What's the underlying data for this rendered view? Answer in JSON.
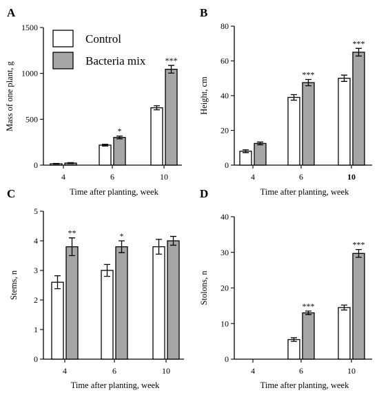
{
  "colors": {
    "control": "#ffffff",
    "bacteria": "#a6a6a8",
    "stroke": "#000000"
  },
  "legend": [
    {
      "key": "control",
      "label": "Control"
    },
    {
      "key": "bacteria",
      "label": "Bacteria mix"
    }
  ],
  "chart_data": [
    {
      "type": "bar",
      "panel": "A",
      "categories": [
        "4",
        "6",
        "10"
      ],
      "bold_categories": [],
      "xlabel": "Time after planting, week",
      "ylabel": "Mass of one plant, g",
      "ylim": [
        0,
        1500
      ],
      "yticks": [
        0,
        500,
        1000,
        1500
      ],
      "series": [
        {
          "key": "control",
          "name": "Control",
          "values": [
            15,
            218,
            625
          ],
          "errors": [
            4,
            10,
            22
          ]
        },
        {
          "key": "bacteria",
          "name": "Bacteria mix",
          "values": [
            22,
            302,
            1045
          ],
          "errors": [
            5,
            15,
            42
          ],
          "significance": [
            "",
            "*",
            "***"
          ]
        }
      ]
    },
    {
      "type": "bar",
      "panel": "B",
      "categories": [
        "4",
        "6",
        "10"
      ],
      "bold_categories": [
        "10"
      ],
      "xlabel": "Time after planting, week",
      "ylabel": "Height, cm",
      "ylim": [
        0,
        80
      ],
      "yticks": [
        0,
        20,
        40,
        60,
        80
      ],
      "series": [
        {
          "key": "control",
          "name": "Control",
          "values": [
            8,
            39,
            50
          ],
          "errors": [
            0.8,
            1.6,
            1.8
          ]
        },
        {
          "key": "bacteria",
          "name": "Bacteria mix",
          "values": [
            12.5,
            47.5,
            65
          ],
          "errors": [
            0.8,
            1.8,
            2.2
          ],
          "significance": [
            "",
            "***",
            "***"
          ]
        }
      ]
    },
    {
      "type": "bar",
      "panel": "C",
      "categories": [
        "4",
        "6",
        "10"
      ],
      "bold_categories": [],
      "xlabel": "Time after planting, week",
      "ylabel": "Stems, n",
      "ylim": [
        0,
        5
      ],
      "yticks": [
        0,
        1,
        2,
        3,
        4,
        5
      ],
      "series": [
        {
          "key": "control",
          "name": "Control",
          "values": [
            2.6,
            3.0,
            3.8
          ],
          "errors": [
            0.22,
            0.2,
            0.25
          ]
        },
        {
          "key": "bacteria",
          "name": "Bacteria mix",
          "values": [
            3.8,
            3.8,
            4.0
          ],
          "errors": [
            0.3,
            0.2,
            0.15
          ],
          "significance": [
            "**",
            "*",
            ""
          ]
        }
      ]
    },
    {
      "type": "bar",
      "panel": "D",
      "categories": [
        "4",
        "6",
        "10"
      ],
      "bold_categories": [],
      "xlabel": "Time after planting, week",
      "ylabel": "Stolons, n",
      "ylim": [
        0,
        40
      ],
      "yticks": [
        0,
        10,
        20,
        30,
        40
      ],
      "series": [
        {
          "key": "control",
          "name": "Control",
          "values": [
            0,
            5.5,
            14.5
          ],
          "errors": [
            0,
            0.5,
            0.7
          ]
        },
        {
          "key": "bacteria",
          "name": "Bacteria mix",
          "values": [
            0,
            13,
            29.7
          ],
          "errors": [
            0,
            0.5,
            1.1
          ],
          "significance": [
            "",
            "***",
            "***"
          ]
        }
      ]
    }
  ]
}
